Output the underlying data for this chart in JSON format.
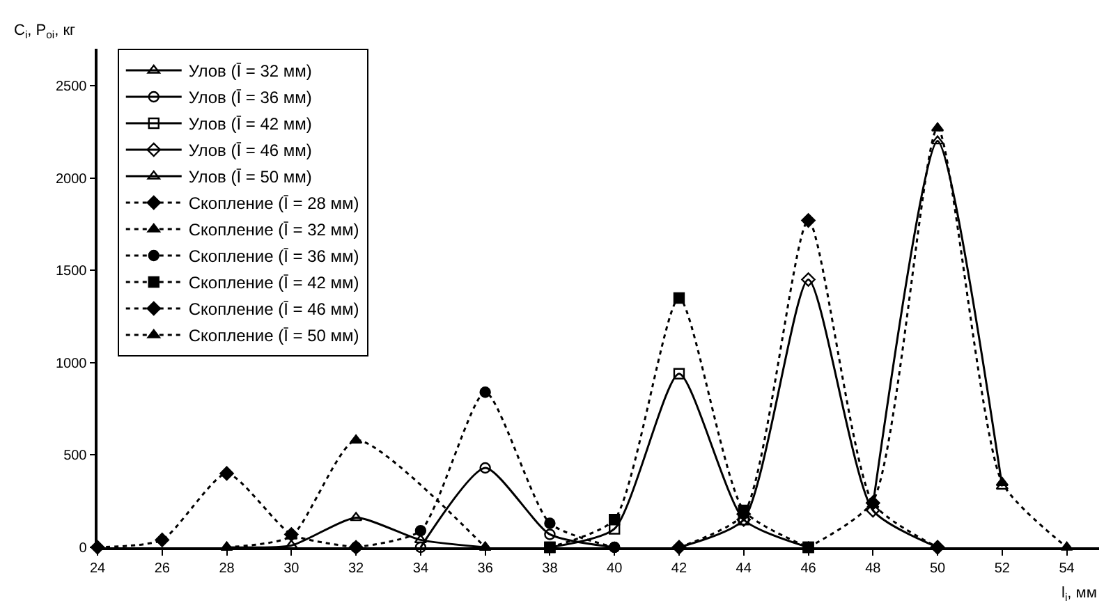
{
  "chart_data": {
    "type": "line",
    "xlabel": "l$_{i}$, мм",
    "ylabel": "C$_{i}$, P$_{oi}$, кг",
    "series": [
      {
        "name": "Улов (Ī = 32 мм)",
        "color": "#000000",
        "marker": "triangle",
        "line_style": "solid",
        "x": [
          28,
          30,
          32,
          34,
          36
        ],
        "values": [
          0,
          10,
          160,
          40,
          0
        ]
      },
      {
        "name": "Улов (Ī = 36 мм)",
        "color": "#000000",
        "marker": "circle",
        "line_style": "solid",
        "x": [
          34,
          36,
          38,
          40
        ],
        "values": [
          0,
          430,
          70,
          0
        ]
      },
      {
        "name": "Улов (Ī = 42 мм)",
        "color": "#000000",
        "marker": "square",
        "line_style": "solid",
        "x": [
          38,
          40,
          42,
          44,
          46
        ],
        "values": [
          0,
          100,
          940,
          150,
          0
        ]
      },
      {
        "name": "Улов (Ī = 46 мм)",
        "color": "#000000",
        "marker": "diamond",
        "line_style": "solid",
        "x": [
          42,
          44,
          46,
          48,
          50
        ],
        "values": [
          0,
          150,
          1450,
          200,
          0
        ]
      },
      {
        "name": "Улов (Ī = 50 мм)",
        "color": "#000000",
        "marker": "triangle",
        "line_style": "solid",
        "x": [
          48,
          50,
          52
        ],
        "values": [
          230,
          2200,
          330
        ]
      },
      {
        "name": "Скопление (Ī = 28 мм)",
        "color": "#000000",
        "marker": "diamond",
        "line_style": "dotted",
        "x": [
          24,
          26,
          28,
          30,
          32
        ],
        "values": [
          0,
          40,
          400,
          70,
          0
        ]
      },
      {
        "name": "Скопление (Ī = 32 мм)",
        "color": "#000000",
        "marker": "triangle",
        "line_style": "dotted",
        "x": [
          28,
          30,
          32,
          36
        ],
        "values": [
          0,
          60,
          580,
          0
        ]
      },
      {
        "name": "Скопление (Ī = 36 мм)",
        "color": "#000000",
        "marker": "circle",
        "line_style": "dotted",
        "x": [
          32,
          34,
          36,
          38,
          40
        ],
        "values": [
          0,
          90,
          840,
          130,
          0
        ]
      },
      {
        "name": "Скопление (Ī = 42 мм)",
        "color": "#000000",
        "marker": "square",
        "line_style": "dotted",
        "x": [
          38,
          40,
          42,
          44,
          46
        ],
        "values": [
          0,
          150,
          1350,
          200,
          0
        ]
      },
      {
        "name": "Скопление (Ī = 46 мм)",
        "color": "#000000",
        "marker": "diamond",
        "line_style": "dotted",
        "x": [
          42,
          44,
          46,
          48,
          50
        ],
        "values": [
          0,
          180,
          1770,
          240,
          0
        ]
      },
      {
        "name": "Скопление (Ī = 50 мм)",
        "color": "#000000",
        "marker": "triangle",
        "line_style": "dotted",
        "x": [
          46,
          48,
          50,
          52,
          54
        ],
        "values": [
          0,
          250,
          2270,
          350,
          0
        ]
      }
    ],
    "xlim": [
      24,
      55
    ],
    "xticks": [
      24,
      26,
      28,
      30,
      32,
      34,
      36,
      38,
      40,
      42,
      44,
      46,
      48,
      50,
      52,
      54
    ],
    "ylim": [
      0,
      2700
    ],
    "yticks": [
      0,
      500,
      1000,
      1500,
      2000,
      2500
    ],
    "legend": "top left"
  }
}
